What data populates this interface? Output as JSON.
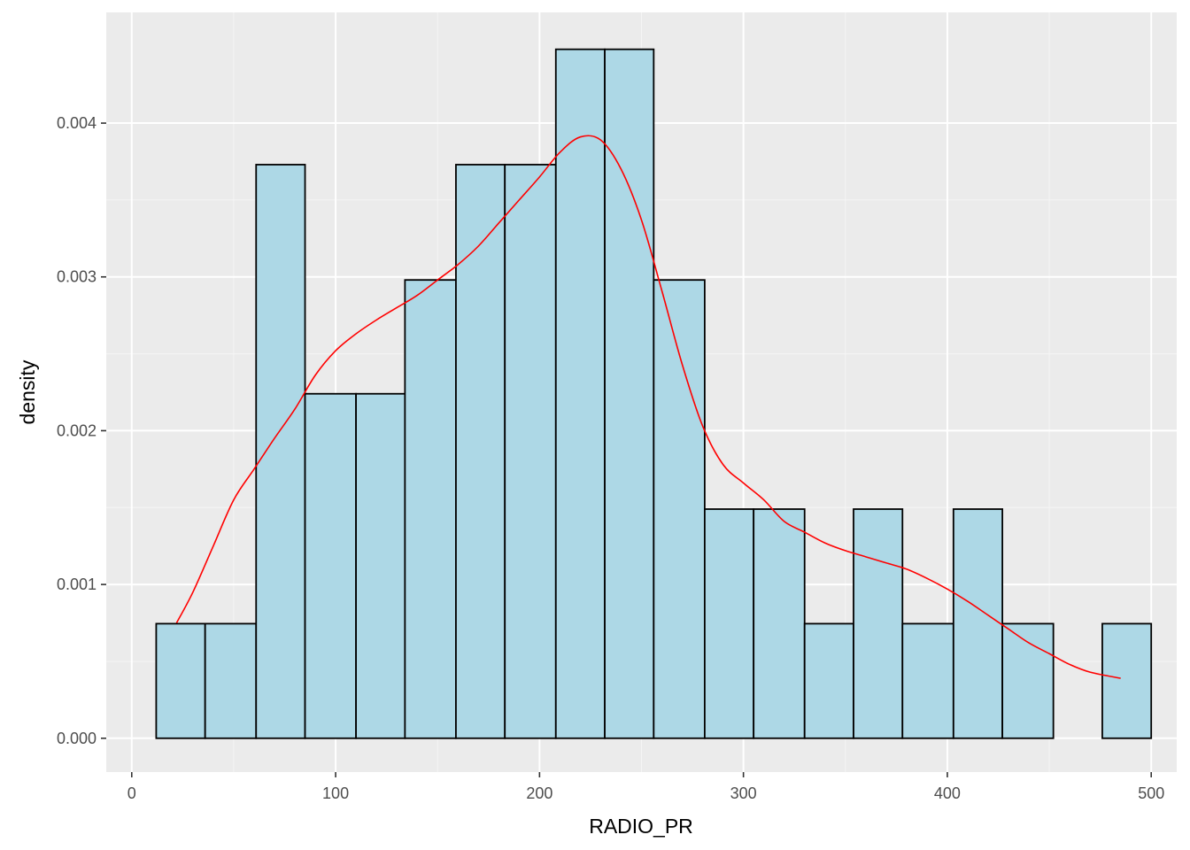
{
  "chart_data": {
    "type": "bar",
    "subtype": "histogram_with_density",
    "title": "",
    "xlabel": "RADIO_PR",
    "ylabel": "density",
    "xlim": [
      -12.5,
      512.5
    ],
    "ylim": [
      -0.00022,
      0.00472
    ],
    "x_ticks": [
      0,
      100,
      200,
      300,
      400,
      500
    ],
    "x_tick_labels": [
      "0",
      "100",
      "200",
      "300",
      "400",
      "500"
    ],
    "y_ticks": [
      0,
      0.001,
      0.002,
      0.003,
      0.004
    ],
    "y_tick_labels": [
      "0.000",
      "0.001",
      "0.002",
      "0.003",
      "0.004"
    ],
    "grid": true,
    "legend": "none",
    "colors": {
      "panel_background": "#ebebeb",
      "grid_major": "#ffffff",
      "grid_minor": "#f5f5f5",
      "bar_fill": "#add8e6",
      "bar_outline": "#000000",
      "density_line": "#ff0000"
    },
    "bins": [
      {
        "x0": 12,
        "x1": 36,
        "density": 0.000745
      },
      {
        "x0": 36,
        "x1": 61,
        "density": 0.000745
      },
      {
        "x0": 61,
        "x1": 85,
        "density": 0.00373
      },
      {
        "x0": 85,
        "x1": 110,
        "density": 0.00224
      },
      {
        "x0": 110,
        "x1": 134,
        "density": 0.00224
      },
      {
        "x0": 134,
        "x1": 159,
        "density": 0.00298
      },
      {
        "x0": 159,
        "x1": 183,
        "density": 0.00373
      },
      {
        "x0": 183,
        "x1": 208,
        "density": 0.00373
      },
      {
        "x0": 208,
        "x1": 232,
        "density": 0.00448
      },
      {
        "x0": 232,
        "x1": 256,
        "density": 0.00448
      },
      {
        "x0": 256,
        "x1": 281,
        "density": 0.00298
      },
      {
        "x0": 281,
        "x1": 305,
        "density": 0.00149
      },
      {
        "x0": 305,
        "x1": 330,
        "density": 0.00149
      },
      {
        "x0": 330,
        "x1": 354,
        "density": 0.000745
      },
      {
        "x0": 354,
        "x1": 378,
        "density": 0.00149
      },
      {
        "x0": 378,
        "x1": 403,
        "density": 0.000745
      },
      {
        "x0": 403,
        "x1": 427,
        "density": 0.00149
      },
      {
        "x0": 427,
        "x1": 452,
        "density": 0.000745
      },
      {
        "x0": 452,
        "x1": 476,
        "density": 0
      },
      {
        "x0": 476,
        "x1": 500,
        "density": 0.000745
      }
    ],
    "density_curve": {
      "x": [
        22,
        30,
        40,
        50,
        60,
        70,
        80,
        90,
        100,
        110,
        120,
        130,
        140,
        150,
        160,
        170,
        180,
        190,
        200,
        210,
        220,
        230,
        240,
        250,
        260,
        270,
        280,
        290,
        300,
        310,
        320,
        330,
        340,
        350,
        360,
        370,
        380,
        390,
        400,
        410,
        420,
        430,
        440,
        450,
        460,
        470,
        485
      ],
      "y": [
        0.00075,
        0.00095,
        0.00125,
        0.00155,
        0.00175,
        0.00195,
        0.00214,
        0.00236,
        0.00252,
        0.00263,
        0.00272,
        0.0028,
        0.00288,
        0.00298,
        0.00308,
        0.0032,
        0.00335,
        0.0035,
        0.00365,
        0.00381,
        0.00391,
        0.00389,
        0.0037,
        0.00337,
        0.00291,
        0.00243,
        0.00203,
        0.00178,
        0.00166,
        0.00155,
        0.00141,
        0.00134,
        0.00127,
        0.00122,
        0.00118,
        0.00114,
        0.0011,
        0.00104,
        0.00097,
        0.00089,
        0.0008,
        0.00071,
        0.00062,
        0.00055,
        0.00048,
        0.00043,
        0.00039
      ]
    }
  }
}
